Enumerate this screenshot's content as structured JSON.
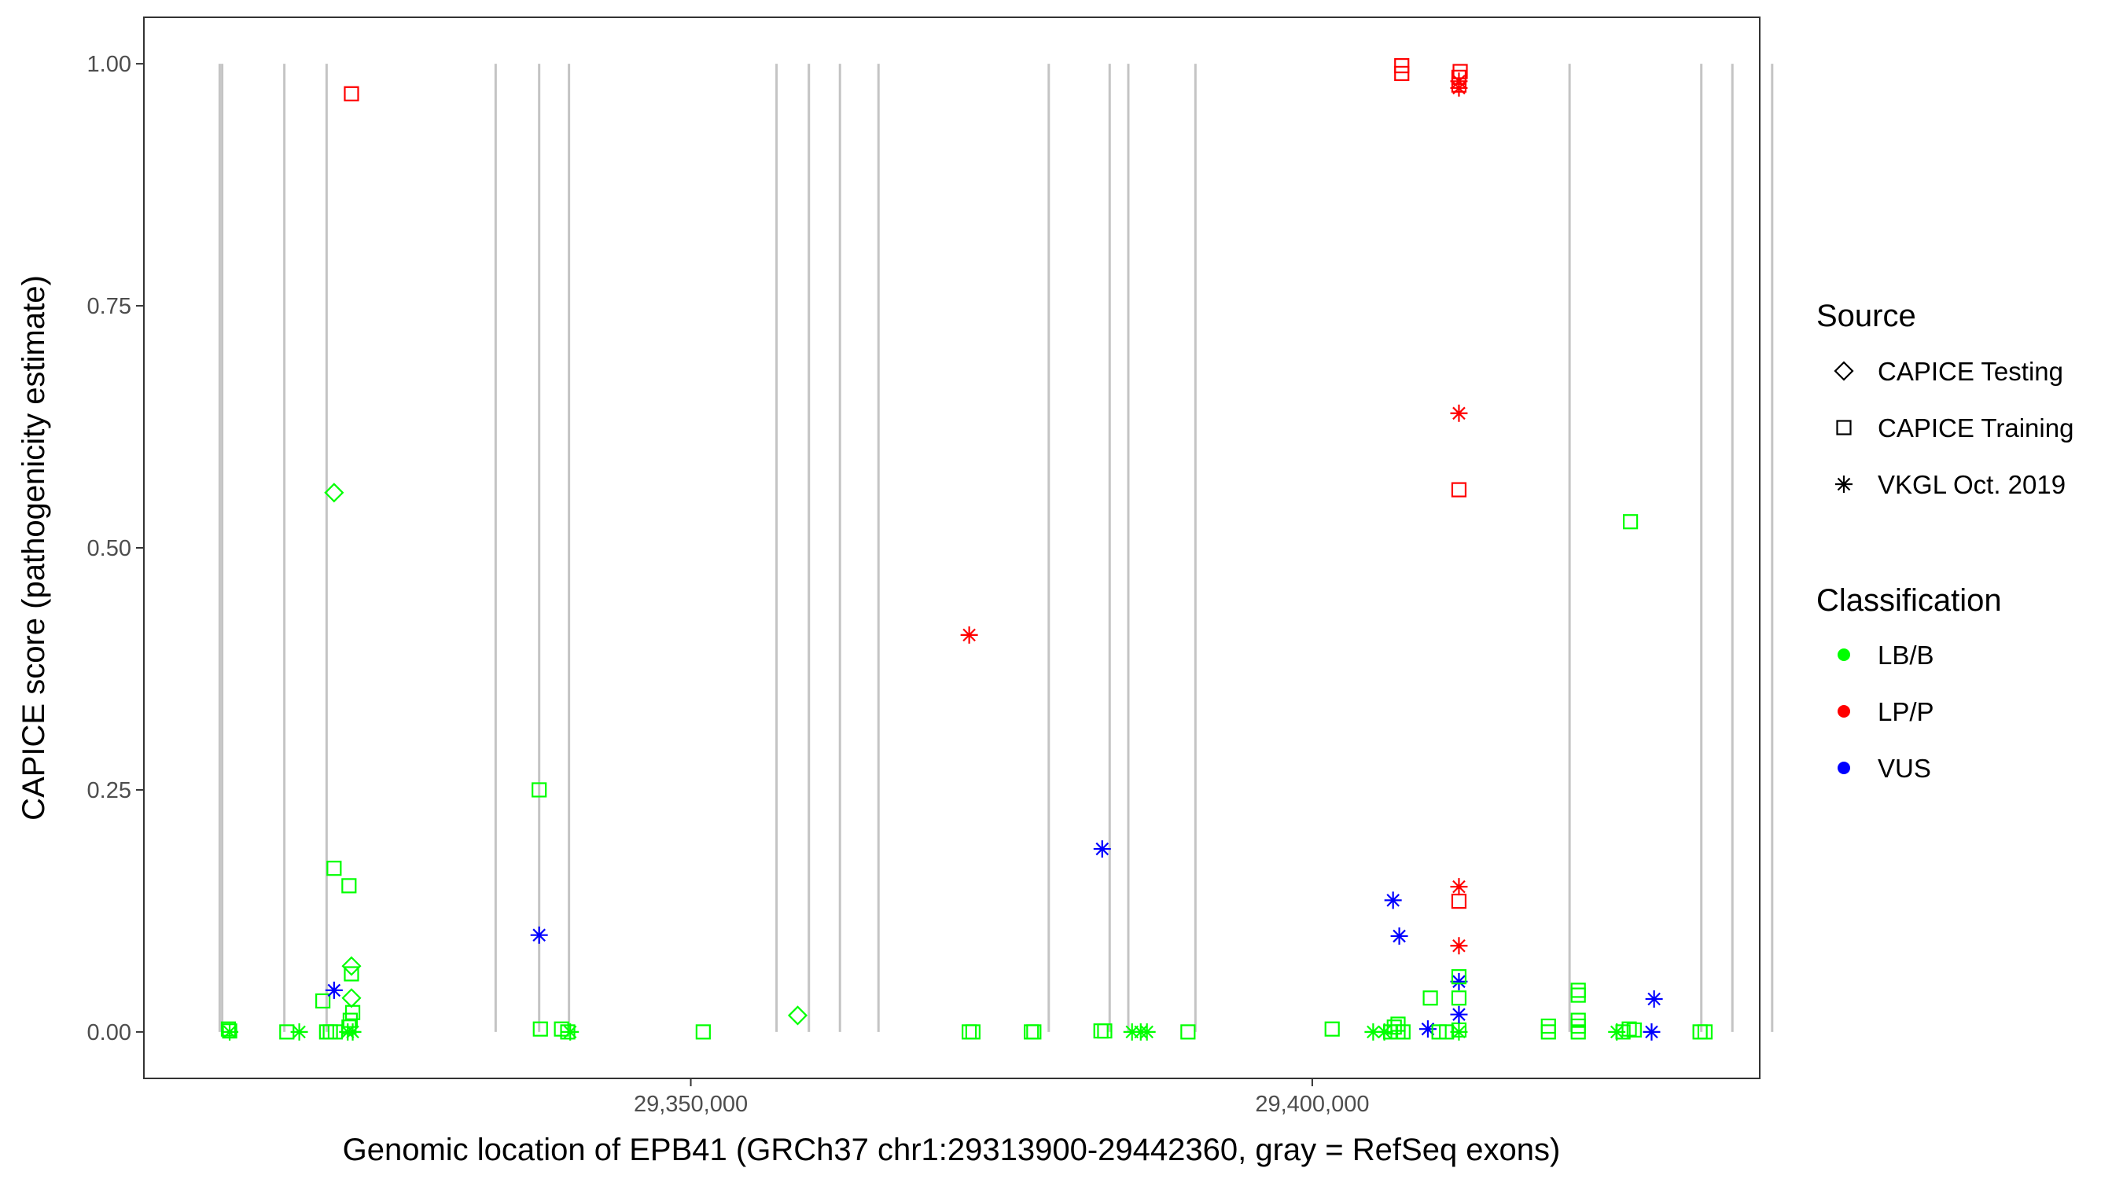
{
  "chart_data": {
    "type": "scatter",
    "xlabel": "Genomic location of EPB41 (GRCh37 chr1:29313900-29442360, gray = RefSeq exons)",
    "ylabel": "CAPICE score (pathogenicity estimate)",
    "xlim": [
      29306000,
      29436000
    ],
    "ylim": [
      -0.048,
      1.048
    ],
    "x_ticks": [
      {
        "value": 29350000,
        "label": "29,350,000"
      },
      {
        "value": 29400000,
        "label": "29,400,000"
      }
    ],
    "y_ticks": [
      {
        "value": 0.0,
        "label": "0.00"
      },
      {
        "value": 0.25,
        "label": "0.25"
      },
      {
        "value": 0.5,
        "label": "0.50"
      },
      {
        "value": 0.75,
        "label": "0.75"
      },
      {
        "value": 1.0,
        "label": "1.00"
      }
    ],
    "grid": false,
    "exons": [
      29312100,
      29312300,
      29317300,
      29320700,
      29334300,
      29337800,
      29340200,
      29356900,
      29359500,
      29362000,
      29365100,
      29378800,
      29383700,
      29385200,
      29390600,
      29420700,
      29431300,
      29433800,
      29437000
    ],
    "legend": {
      "placement": "right",
      "shape_title": "Source",
      "shapes": [
        {
          "key": "diamond",
          "label": "CAPICE Testing"
        },
        {
          "key": "square",
          "label": "CAPICE Training"
        },
        {
          "key": "star",
          "label": "VKGL Oct. 2019"
        }
      ],
      "color_title": "Classification",
      "colors": [
        {
          "key": "LB/B",
          "label": "LB/B",
          "color": "#00ff00"
        },
        {
          "key": "LP/P",
          "label": "LP/P",
          "color": "#ff0000"
        },
        {
          "key": "VUS",
          "label": "VUS",
          "color": "#0000ff"
        }
      ]
    },
    "points": [
      {
        "x": 29312800,
        "y": 0.003,
        "shape": "square",
        "cls": "LB/B"
      },
      {
        "x": 29312900,
        "y": 0.001,
        "shape": "square",
        "cls": "LB/B"
      },
      {
        "x": 29312900,
        "y": 0.0,
        "shape": "star",
        "cls": "LB/B"
      },
      {
        "x": 29317500,
        "y": 0.0,
        "shape": "square",
        "cls": "LB/B"
      },
      {
        "x": 29318500,
        "y": 0.0,
        "shape": "star",
        "cls": "LB/B"
      },
      {
        "x": 29320400,
        "y": 0.032,
        "shape": "square",
        "cls": "LB/B"
      },
      {
        "x": 29320700,
        "y": 0.0,
        "shape": "square",
        "cls": "LB/B"
      },
      {
        "x": 29321000,
        "y": 0.0,
        "shape": "square",
        "cls": "LB/B"
      },
      {
        "x": 29321400,
        "y": 0.0,
        "shape": "square",
        "cls": "LB/B"
      },
      {
        "x": 29321300,
        "y": 0.169,
        "shape": "square",
        "cls": "LB/B"
      },
      {
        "x": 29321300,
        "y": 0.557,
        "shape": "diamond",
        "cls": "LB/B"
      },
      {
        "x": 29321300,
        "y": 0.043,
        "shape": "star",
        "cls": "VUS"
      },
      {
        "x": 29322500,
        "y": 0.151,
        "shape": "square",
        "cls": "LB/B"
      },
      {
        "x": 29322700,
        "y": 0.969,
        "shape": "square",
        "cls": "LP/P"
      },
      {
        "x": 29322700,
        "y": 0.068,
        "shape": "diamond",
        "cls": "LB/B"
      },
      {
        "x": 29322700,
        "y": 0.06,
        "shape": "square",
        "cls": "LB/B"
      },
      {
        "x": 29322700,
        "y": 0.035,
        "shape": "diamond",
        "cls": "LB/B"
      },
      {
        "x": 29322800,
        "y": 0.02,
        "shape": "square",
        "cls": "LB/B"
      },
      {
        "x": 29322600,
        "y": 0.012,
        "shape": "square",
        "cls": "LB/B"
      },
      {
        "x": 29322500,
        "y": 0.005,
        "shape": "square",
        "cls": "LB/B"
      },
      {
        "x": 29322400,
        "y": 0.0,
        "shape": "star",
        "cls": "LB/B"
      },
      {
        "x": 29322800,
        "y": 0.0,
        "shape": "star",
        "cls": "LB/B"
      },
      {
        "x": 29337800,
        "y": 0.25,
        "shape": "square",
        "cls": "LB/B"
      },
      {
        "x": 29337800,
        "y": 0.1,
        "shape": "star",
        "cls": "VUS"
      },
      {
        "x": 29337900,
        "y": 0.003,
        "shape": "square",
        "cls": "LB/B"
      },
      {
        "x": 29339600,
        "y": 0.003,
        "shape": "square",
        "cls": "LB/B"
      },
      {
        "x": 29340100,
        "y": 0.0,
        "shape": "square",
        "cls": "LB/B"
      },
      {
        "x": 29340300,
        "y": 0.0,
        "shape": "star",
        "cls": "LB/B"
      },
      {
        "x": 29351000,
        "y": 0.0,
        "shape": "square",
        "cls": "LB/B"
      },
      {
        "x": 29358600,
        "y": 0.017,
        "shape": "diamond",
        "cls": "LB/B"
      },
      {
        "x": 29372400,
        "y": 0.41,
        "shape": "star",
        "cls": "LP/P"
      },
      {
        "x": 29372400,
        "y": 0.0,
        "shape": "square",
        "cls": "LB/B"
      },
      {
        "x": 29372700,
        "y": 0.0,
        "shape": "square",
        "cls": "LB/B"
      },
      {
        "x": 29377400,
        "y": 0.0,
        "shape": "square",
        "cls": "LB/B"
      },
      {
        "x": 29377600,
        "y": 0.0,
        "shape": "square",
        "cls": "LB/B"
      },
      {
        "x": 29383100,
        "y": 0.189,
        "shape": "star",
        "cls": "VUS"
      },
      {
        "x": 29383000,
        "y": 0.001,
        "shape": "square",
        "cls": "LB/B"
      },
      {
        "x": 29383300,
        "y": 0.001,
        "shape": "square",
        "cls": "LB/B"
      },
      {
        "x": 29385500,
        "y": 0.0,
        "shape": "star",
        "cls": "LB/B"
      },
      {
        "x": 29386200,
        "y": 0.0,
        "shape": "star",
        "cls": "LB/B"
      },
      {
        "x": 29386700,
        "y": 0.0,
        "shape": "star",
        "cls": "LB/B"
      },
      {
        "x": 29390000,
        "y": 0.0,
        "shape": "square",
        "cls": "LB/B"
      },
      {
        "x": 29401600,
        "y": 0.003,
        "shape": "square",
        "cls": "LB/B"
      },
      {
        "x": 29404900,
        "y": 0.0,
        "shape": "star",
        "cls": "LB/B"
      },
      {
        "x": 29405800,
        "y": 0.0,
        "shape": "star",
        "cls": "LB/B"
      },
      {
        "x": 29406300,
        "y": 0.0,
        "shape": "square",
        "cls": "LB/B"
      },
      {
        "x": 29406600,
        "y": 0.005,
        "shape": "square",
        "cls": "LB/B"
      },
      {
        "x": 29406900,
        "y": 0.0,
        "shape": "square",
        "cls": "LB/B"
      },
      {
        "x": 29406900,
        "y": 0.008,
        "shape": "square",
        "cls": "LB/B"
      },
      {
        "x": 29407300,
        "y": 0.0,
        "shape": "square",
        "cls": "LB/B"
      },
      {
        "x": 29406500,
        "y": 0.136,
        "shape": "star",
        "cls": "VUS"
      },
      {
        "x": 29407000,
        "y": 0.099,
        "shape": "star",
        "cls": "VUS"
      },
      {
        "x": 29407200,
        "y": 0.998,
        "shape": "square",
        "cls": "LP/P"
      },
      {
        "x": 29407200,
        "y": 0.99,
        "shape": "square",
        "cls": "LP/P"
      },
      {
        "x": 29409300,
        "y": 0.003,
        "shape": "star",
        "cls": "VUS"
      },
      {
        "x": 29409500,
        "y": 0.035,
        "shape": "square",
        "cls": "LB/B"
      },
      {
        "x": 29410200,
        "y": 0.0,
        "shape": "square",
        "cls": "LB/B"
      },
      {
        "x": 29410800,
        "y": 0.0,
        "shape": "square",
        "cls": "LB/B"
      },
      {
        "x": 29411800,
        "y": 0.0,
        "shape": "star",
        "cls": "LB/B"
      },
      {
        "x": 29411800,
        "y": 0.002,
        "shape": "square",
        "cls": "LB/B"
      },
      {
        "x": 29411800,
        "y": 0.018,
        "shape": "star",
        "cls": "VUS"
      },
      {
        "x": 29411800,
        "y": 0.035,
        "shape": "square",
        "cls": "LB/B"
      },
      {
        "x": 29411800,
        "y": 0.052,
        "shape": "star",
        "cls": "VUS"
      },
      {
        "x": 29411800,
        "y": 0.057,
        "shape": "square",
        "cls": "LB/B"
      },
      {
        "x": 29411800,
        "y": 0.089,
        "shape": "star",
        "cls": "LP/P"
      },
      {
        "x": 29411800,
        "y": 0.135,
        "shape": "square",
        "cls": "LP/P"
      },
      {
        "x": 29411800,
        "y": 0.15,
        "shape": "star",
        "cls": "LP/P"
      },
      {
        "x": 29411800,
        "y": 0.56,
        "shape": "square",
        "cls": "LP/P"
      },
      {
        "x": 29411800,
        "y": 0.639,
        "shape": "star",
        "cls": "LP/P"
      },
      {
        "x": 29411800,
        "y": 0.975,
        "shape": "star",
        "cls": "LP/P"
      },
      {
        "x": 29411800,
        "y": 0.978,
        "shape": "square",
        "cls": "LP/P"
      },
      {
        "x": 29411800,
        "y": 0.982,
        "shape": "star",
        "cls": "LP/P"
      },
      {
        "x": 29411800,
        "y": 0.986,
        "shape": "square",
        "cls": "LP/P"
      },
      {
        "x": 29411900,
        "y": 0.992,
        "shape": "square",
        "cls": "LP/P"
      },
      {
        "x": 29419000,
        "y": 0.0,
        "shape": "square",
        "cls": "LB/B"
      },
      {
        "x": 29419000,
        "y": 0.006,
        "shape": "square",
        "cls": "LB/B"
      },
      {
        "x": 29421400,
        "y": 0.0,
        "shape": "square",
        "cls": "LB/B"
      },
      {
        "x": 29421400,
        "y": 0.006,
        "shape": "square",
        "cls": "LB/B"
      },
      {
        "x": 29421400,
        "y": 0.012,
        "shape": "square",
        "cls": "LB/B"
      },
      {
        "x": 29421400,
        "y": 0.038,
        "shape": "square",
        "cls": "LB/B"
      },
      {
        "x": 29421400,
        "y": 0.043,
        "shape": "square",
        "cls": "LB/B"
      },
      {
        "x": 29424500,
        "y": 0.0,
        "shape": "star",
        "cls": "LB/B"
      },
      {
        "x": 29425000,
        "y": 0.0,
        "shape": "square",
        "cls": "LB/B"
      },
      {
        "x": 29425500,
        "y": 0.003,
        "shape": "square",
        "cls": "LB/B"
      },
      {
        "x": 29425900,
        "y": 0.002,
        "shape": "square",
        "cls": "LB/B"
      },
      {
        "x": 29425600,
        "y": 0.527,
        "shape": "square",
        "cls": "LB/B"
      },
      {
        "x": 29427500,
        "y": 0.034,
        "shape": "star",
        "cls": "VUS"
      },
      {
        "x": 29427300,
        "y": 0.0,
        "shape": "star",
        "cls": "VUS"
      },
      {
        "x": 29431200,
        "y": 0.0,
        "shape": "square",
        "cls": "LB/B"
      },
      {
        "x": 29431600,
        "y": 0.0,
        "shape": "square",
        "cls": "LB/B"
      }
    ]
  }
}
